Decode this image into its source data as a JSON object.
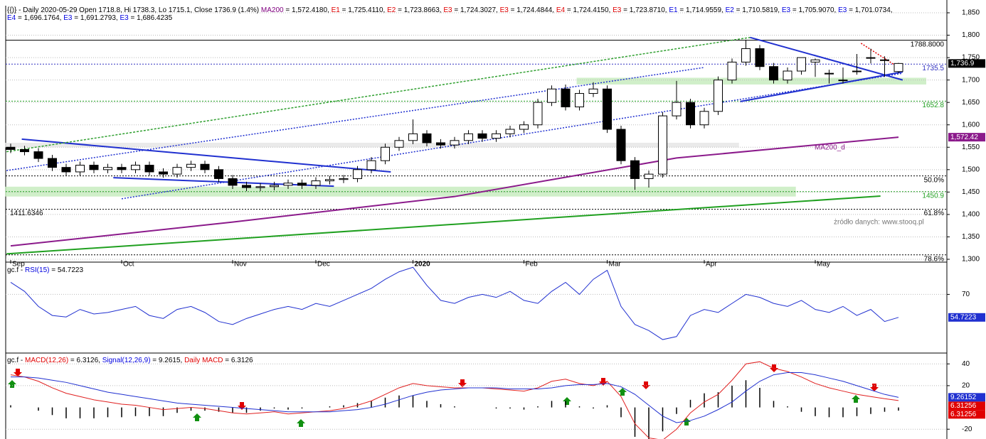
{
  "chart_data": [
    {
      "type": "candlestick",
      "header": [
        {
          "text": "{{)} - Daily 2020-05-29 Open 1718.8, Hi 1738.3, Lo 1715.1, Close 1736.9 (1.4%) ",
          "color": "#000000"
        },
        {
          "text": "MA200",
          "color": "#800080"
        },
        {
          "text": " = 1,572.4180, ",
          "color": "#000000"
        },
        {
          "text": "E1",
          "color": "#e00000"
        },
        {
          "text": " = 1,725.4110, ",
          "color": "#000000"
        },
        {
          "text": "E2",
          "color": "#e00000"
        },
        {
          "text": " = 1,723.8663, ",
          "color": "#000000"
        },
        {
          "text": "E3",
          "color": "#e00000"
        },
        {
          "text": " = 1,724.3027, ",
          "color": "#000000"
        },
        {
          "text": "E3",
          "color": "#e00000"
        },
        {
          "text": " = 1,724.4844, ",
          "color": "#000000"
        },
        {
          "text": "E4",
          "color": "#e00000"
        },
        {
          "text": " = 1,724.4150, ",
          "color": "#000000"
        },
        {
          "text": "E3",
          "color": "#e00000"
        },
        {
          "text": " = 1,723.8710, ",
          "color": "#000000"
        },
        {
          "text": "E1",
          "color": "#0000e0"
        },
        {
          "text": " = 1,714.9559, ",
          "color": "#000000"
        },
        {
          "text": "E2",
          "color": "#0000e0"
        },
        {
          "text": " = 1,710.5819, ",
          "color": "#000000"
        },
        {
          "text": "E3",
          "color": "#0000e0"
        },
        {
          "text": " = 1,705.9070, ",
          "color": "#000000"
        },
        {
          "text": "E3",
          "color": "#0000e0"
        },
        {
          "text": " = 1,701.0734,",
          "color": "#000000"
        }
      ],
      "header2": [
        {
          "text": "E4",
          "color": "#0000e0"
        },
        {
          "text": " = 1,696.1764, ",
          "color": "#000000"
        },
        {
          "text": "E3",
          "color": "#0000e0"
        },
        {
          "text": " = 1,691.2793, ",
          "color": "#000000"
        },
        {
          "text": "E3",
          "color": "#0000e0"
        },
        {
          "text": " = 1,686.4235",
          "color": "#000000"
        }
      ],
      "categories": [
        "Sep",
        null,
        null,
        null,
        null,
        null,
        null,
        null,
        "Oct",
        null,
        null,
        null,
        null,
        null,
        null,
        null,
        "Nov",
        null,
        null,
        null,
        null,
        null,
        "Dec",
        null,
        null,
        null,
        null,
        null,
        null,
        "2020",
        null,
        null,
        null,
        null,
        null,
        null,
        null,
        "Feb",
        null,
        null,
        null,
        null,
        null,
        "Mar",
        null,
        null,
        null,
        null,
        null,
        null,
        "Apr",
        null,
        null,
        null,
        null,
        null,
        null,
        null,
        "May",
        null,
        null,
        null,
        null,
        null,
        null
      ],
      "open": [
        1550,
        1545,
        1540,
        1525,
        1505,
        1495,
        1510,
        1500,
        1505,
        1500,
        1510,
        1495,
        1490,
        1505,
        1512,
        1500,
        1480,
        1465,
        1460,
        1462,
        1465,
        1470,
        1465,
        1475,
        1478,
        1480,
        1500,
        1520,
        1550,
        1565,
        1580,
        1560,
        1555,
        1565,
        1580,
        1570,
        1580,
        1590,
        1600,
        1650,
        1680,
        1640,
        1670,
        1680,
        1590,
        1520,
        1480,
        1490,
        1620,
        1650,
        1600,
        1630,
        1700,
        1740,
        1770,
        1730,
        1700,
        1720,
        1740,
        1715,
        1700,
        1720,
        1750,
        1745,
        1718.8
      ],
      "high": [
        1558,
        1553,
        1548,
        1533,
        1513,
        1518,
        1518,
        1513,
        1513,
        1518,
        1518,
        1503,
        1513,
        1520,
        1520,
        1508,
        1488,
        1473,
        1470,
        1473,
        1478,
        1478,
        1483,
        1486,
        1488,
        1508,
        1528,
        1558,
        1573,
        1612,
        1588,
        1568,
        1573,
        1588,
        1588,
        1588,
        1598,
        1608,
        1658,
        1688,
        1690,
        1678,
        1695,
        1688,
        1598,
        1528,
        1498,
        1628,
        1698,
        1658,
        1638,
        1708,
        1748,
        1790,
        1778,
        1738,
        1728,
        1748,
        1748,
        1723,
        1728,
        1758,
        1770,
        1753,
        1738.3
      ],
      "low": [
        1537,
        1532,
        1517,
        1497,
        1487,
        1487,
        1492,
        1492,
        1492,
        1492,
        1487,
        1482,
        1482,
        1497,
        1492,
        1472,
        1457,
        1452,
        1452,
        1454,
        1457,
        1457,
        1457,
        1467,
        1470,
        1472,
        1492,
        1512,
        1542,
        1557,
        1552,
        1547,
        1547,
        1557,
        1562,
        1562,
        1572,
        1582,
        1592,
        1642,
        1632,
        1632,
        1662,
        1582,
        1512,
        1455,
        1460,
        1482,
        1612,
        1592,
        1592,
        1622,
        1692,
        1732,
        1722,
        1692,
        1692,
        1712,
        1707,
        1692,
        1692,
        1712,
        1737,
        1707,
        1715.1
      ],
      "close": [
        1545,
        1540,
        1525,
        1505,
        1495,
        1510,
        1500,
        1505,
        1500,
        1510,
        1495,
        1490,
        1505,
        1512,
        1500,
        1480,
        1465,
        1460,
        1462,
        1465,
        1470,
        1465,
        1475,
        1478,
        1480,
        1500,
        1520,
        1550,
        1565,
        1580,
        1560,
        1555,
        1565,
        1580,
        1570,
        1580,
        1590,
        1600,
        1650,
        1680,
        1640,
        1670,
        1680,
        1590,
        1520,
        1480,
        1490,
        1620,
        1650,
        1600,
        1630,
        1700,
        1740,
        1770,
        1730,
        1700,
        1720,
        1750,
        1745,
        1715,
        1700,
        1720,
        1750,
        1745,
        1736.9
      ],
      "ylim": [
        1300,
        1850
      ],
      "yticks": [
        {
          "value": 1300,
          "label": "1,300"
        },
        {
          "value": 1350,
          "label": "1,350"
        },
        {
          "value": 1400,
          "label": "1,400"
        },
        {
          "value": 1450,
          "label": "1,450"
        },
        {
          "value": 1500,
          "label": "1,500"
        },
        {
          "value": 1550,
          "label": "1,550"
        },
        {
          "value": 1600,
          "label": "1,600"
        },
        {
          "value": 1650,
          "label": "1,650"
        },
        {
          "value": 1700,
          "label": "1,700"
        },
        {
          "value": 1750,
          "label": "1,750"
        },
        {
          "value": 1800,
          "label": "1,800"
        },
        {
          "value": 1850,
          "label": "1,850"
        }
      ],
      "ma200": {
        "name": "MA200_d",
        "color": "#8b1a8b",
        "x": [
          0,
          16,
          32,
          48,
          64
        ],
        "values": [
          1330,
          1383,
          1440,
          1526,
          1572.418
        ]
      },
      "zones": [
        {
          "from": 1440,
          "to": 1462,
          "x": [
            -0.4,
            56.6
          ],
          "color": "#c8ecc0"
        },
        {
          "from": 1690,
          "to": 1705,
          "x": [
            40.8,
            66
          ],
          "color": "#c8ecc0"
        },
        {
          "from": 1550,
          "to": 1560,
          "x": [
            -0.4,
            52.5
          ],
          "color": "#e6e6e6"
        }
      ],
      "levels": [
        {
          "value": 1788.8,
          "label": "1788.8000",
          "color": "#000000"
        },
        {
          "value": 1735.5,
          "label": "1735.5",
          "color": "#3030c0"
        },
        {
          "value": 1652.8,
          "label": "1652.8",
          "color": "#20a020"
        },
        {
          "value": 1486,
          "label": "50.0%",
          "color": "#000000"
        },
        {
          "value": 1450.9,
          "label": "1450.9",
          "color": "#20a020"
        },
        {
          "value": 1411.6346,
          "label": "61.8%",
          "left_label": "1411.6346",
          "color": "#000000"
        },
        {
          "value": 1310,
          "label": "78.6%",
          "color": "#000000"
        }
      ],
      "trendlines": [
        {
          "x": [
            0.8,
            27.4
          ],
          "y": [
            1568,
            1495
          ],
          "color": "#2030d0",
          "dash": ""
        },
        {
          "x": [
            7.4,
            23.3
          ],
          "y": [
            1482,
            1463
          ],
          "color": "#2030d0",
          "dash": ""
        },
        {
          "x": [
            53.3,
            64.3
          ],
          "y": [
            1795,
            1700
          ],
          "color": "#2030d0",
          "dash": ""
        },
        {
          "x": [
            52.6,
            64.3
          ],
          "y": [
            1652,
            1718
          ],
          "color": "#2030d0",
          "dash": ""
        },
        {
          "x": [
            -0.3,
            53.3
          ],
          "y": [
            1540,
            1795
          ],
          "color": "#30a030",
          "dash": "3 2"
        },
        {
          "x": [
            -0.3,
            50
          ],
          "y": [
            1498,
            1728
          ],
          "color": "#2030d0",
          "dash": "2 2"
        },
        {
          "x": [
            8,
            64.3
          ],
          "y": [
            1435,
            1715
          ],
          "color": "#2030d0",
          "dash": "2 2"
        },
        {
          "x": [
            -0.3,
            62.7
          ],
          "y": [
            1312,
            1441
          ],
          "color": "#20a020",
          "dash": ""
        },
        {
          "x": [
            61.3,
            64.3
          ],
          "y": [
            1782,
            1722
          ],
          "color": "#e00000",
          "dash": "2 2"
        }
      ],
      "value_boxes": [
        {
          "value": 1736.9,
          "label": "1,736.9",
          "color": "#000000"
        },
        {
          "value": 1572.418,
          "label": "1,572.42",
          "color": "#8b1a8b"
        }
      ],
      "source": "żródło danych: www.stooq.pl"
    },
    {
      "type": "line",
      "header": [
        {
          "text": "gc.f - ",
          "color": "#000000"
        },
        {
          "text": "RSI(15)",
          "color": "#0000e0"
        },
        {
          "text": " = 54.7223",
          "color": "#000000"
        }
      ],
      "series": [
        {
          "name": "RSI(15)",
          "color": "#2030d0",
          "values": [
            78,
            72,
            62,
            56,
            55,
            60,
            57,
            58,
            60,
            62,
            56,
            54,
            60,
            62,
            58,
            52,
            50,
            54,
            57,
            60,
            62,
            60,
            64,
            62,
            66,
            70,
            74,
            80,
            85,
            88,
            76,
            66,
            64,
            68,
            70,
            68,
            72,
            66,
            64,
            72,
            78,
            70,
            80,
            86,
            62,
            50,
            46,
            40,
            42,
            56,
            60,
            58,
            64,
            70,
            68,
            64,
            62,
            66,
            60,
            58,
            62,
            56,
            60,
            52,
            54.7223
          ]
        }
      ],
      "ylim": [
        32,
        90
      ],
      "yticks": [
        70
      ],
      "value_boxes": [
        {
          "value": 54.7223,
          "label": "54.7223",
          "color": "#2030d0"
        }
      ]
    },
    {
      "type": "macd",
      "header": [
        {
          "text": "gc.f - ",
          "color": "#000000"
        },
        {
          "text": "MACD(12,26)",
          "color": "#e00000"
        },
        {
          "text": " = 6.3126, ",
          "color": "#000000"
        },
        {
          "text": "Signal(12,26,9)",
          "color": "#0000e0"
        },
        {
          "text": " = 9.2615, ",
          "color": "#000000"
        },
        {
          "text": "Daily MACD",
          "color": "#e00000"
        },
        {
          "text": " = 6.3126",
          "color": "#000000"
        }
      ],
      "series": [
        {
          "name": "MACD(12,26)",
          "color": "#e02020",
          "values": [
            30,
            28,
            24,
            18,
            13,
            10,
            7,
            5,
            3,
            2,
            0,
            -2,
            -1,
            0,
            -1,
            -3,
            -5,
            -6,
            -5,
            -4,
            -6,
            -5,
            -4,
            -3,
            -1,
            2,
            6,
            12,
            18,
            22,
            20,
            19,
            18,
            18,
            18,
            17,
            16,
            15,
            18,
            24,
            26,
            22,
            20,
            24,
            10,
            -15,
            -28,
            -30,
            -20,
            -5,
            5,
            12,
            25,
            40,
            42,
            36,
            33,
            28,
            22,
            18,
            15,
            12,
            10,
            8,
            6.3126
          ]
        },
        {
          "name": "Signal(12,26,9)",
          "color": "#2030d0",
          "values": [
            28,
            28,
            27,
            25,
            23,
            20,
            17,
            14,
            12,
            10,
            8,
            6,
            4,
            3,
            2,
            1,
            0,
            -1,
            -2,
            -3,
            -4,
            -4,
            -4,
            -4,
            -3,
            -2,
            0,
            3,
            7,
            11,
            14,
            16,
            17,
            18,
            18,
            18,
            17,
            17,
            17,
            18,
            20,
            21,
            21,
            22,
            19,
            12,
            2,
            -8,
            -14,
            -12,
            -8,
            -2,
            5,
            15,
            24,
            30,
            32,
            32,
            30,
            27,
            24,
            20,
            16,
            12,
            9.2615
          ]
        }
      ],
      "histogram": [
        2,
        0,
        -3,
        -7,
        -10,
        -10,
        -10,
        -9,
        -9,
        -8,
        -8,
        -8,
        -5,
        -3,
        -3,
        -4,
        -5,
        -5,
        -3,
        -1,
        -2,
        -1,
        0,
        1,
        2,
        4,
        6,
        9,
        11,
        11,
        6,
        3,
        1,
        0,
        0,
        -1,
        -1,
        -2,
        1,
        6,
        6,
        1,
        -1,
        2,
        -9,
        -27,
        -30,
        -22,
        -6,
        7,
        13,
        14,
        20,
        25,
        18,
        6,
        1,
        -4,
        -8,
        -9,
        -9,
        -8,
        -6,
        -4,
        -2.9489
      ],
      "ylim": [
        -29,
        48
      ],
      "yticks": [
        -20,
        20,
        40
      ],
      "value_boxes": [
        {
          "value": 9.2615,
          "label": "9.26152",
          "color": "#2030d0"
        },
        {
          "value": 6.3126,
          "label": "6.31256",
          "color": "#e00000"
        },
        {
          "value": 6.3126,
          "label": "6.31256",
          "color": "#e00000"
        }
      ]
    }
  ]
}
